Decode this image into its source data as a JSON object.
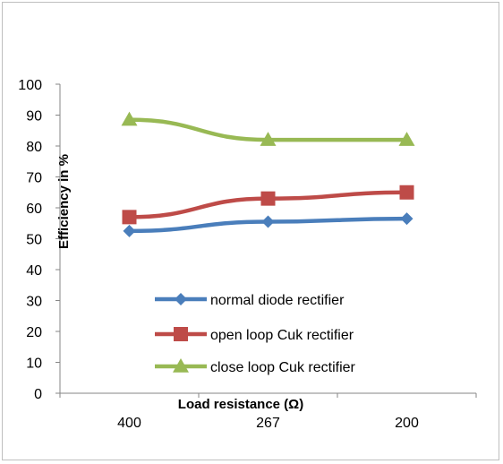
{
  "chart_data": {
    "type": "line",
    "title": "",
    "xlabel": "Load resistance (Ω)",
    "ylabel": "Efficiency in %",
    "categories": [
      "400",
      "267",
      "200"
    ],
    "ylim": [
      0,
      100
    ],
    "yticks": [
      0,
      10,
      20,
      30,
      40,
      50,
      60,
      70,
      80,
      90,
      100
    ],
    "grid": false,
    "legend": "inside-bottom",
    "series": [
      {
        "name": "normal diode rectifier",
        "values": [
          52.5,
          55.5,
          56.5
        ],
        "color": "#4a7ebb",
        "marker": "diamond"
      },
      {
        "name": "open loop Cuk rectifier",
        "values": [
          57,
          63,
          65
        ],
        "color": "#be4b48",
        "marker": "square"
      },
      {
        "name": "close loop Cuk rectifier",
        "values": [
          88.5,
          82,
          82
        ],
        "color": "#98b954",
        "marker": "triangle"
      }
    ]
  }
}
